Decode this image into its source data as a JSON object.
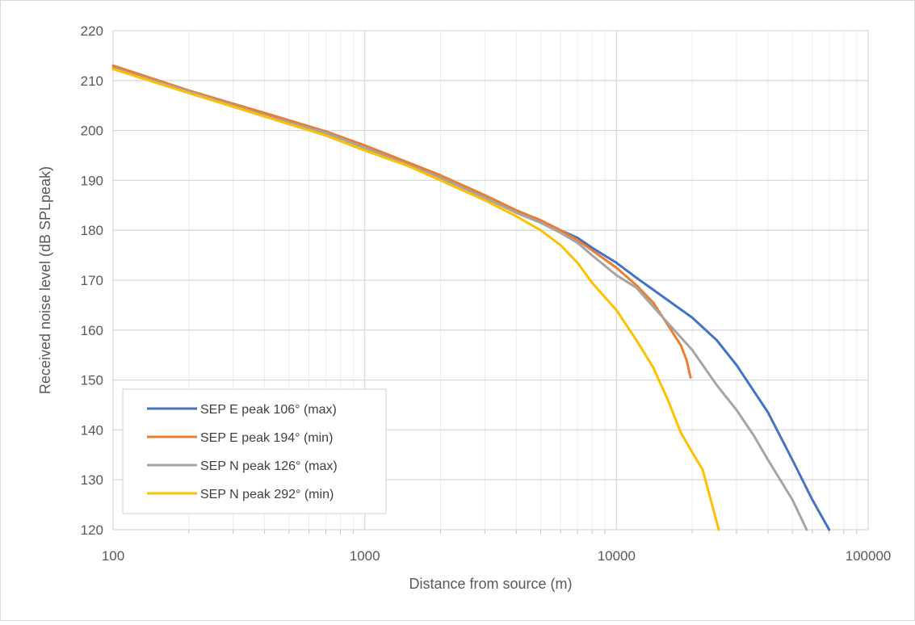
{
  "chart_data": {
    "type": "line",
    "title": "",
    "xlabel": "Distance from source (m)",
    "ylabel": "Received noise level (dB SPLpeak)",
    "xscale": "log",
    "xlim": [
      100,
      100000
    ],
    "ylim": [
      120,
      220
    ],
    "x_ticks": [
      "100",
      "1000",
      "10000",
      "100000"
    ],
    "y_ticks": [
      "120",
      "130",
      "140",
      "150",
      "160",
      "170",
      "180",
      "190",
      "200",
      "210",
      "220"
    ],
    "grid": true,
    "legend_position": "bottom-left",
    "series": [
      {
        "name": "SEP E peak 106° (max)",
        "color": "#4472c4",
        "points": [
          [
            100,
            213.0
          ],
          [
            200,
            208.0
          ],
          [
            400,
            203.5
          ],
          [
            700,
            199.8
          ],
          [
            1000,
            197.0
          ],
          [
            1500,
            193.5
          ],
          [
            2000,
            191.0
          ],
          [
            3000,
            187.0
          ],
          [
            4000,
            184.0
          ],
          [
            5000,
            182.0
          ],
          [
            6000,
            180.0
          ],
          [
            7000,
            178.5
          ],
          [
            8000,
            176.5
          ],
          [
            10000,
            173.5
          ],
          [
            12000,
            170.5
          ],
          [
            15000,
            167.0
          ],
          [
            20000,
            162.5
          ],
          [
            25000,
            158.0
          ],
          [
            30000,
            153.0
          ],
          [
            40000,
            143.5
          ],
          [
            50000,
            134.0
          ],
          [
            60000,
            126.0
          ],
          [
            70000,
            120.0
          ]
        ]
      },
      {
        "name": "SEP E peak 194° (min)",
        "color": "#ed7d31",
        "points": [
          [
            100,
            213.0
          ],
          [
            200,
            208.0
          ],
          [
            400,
            203.5
          ],
          [
            700,
            199.8
          ],
          [
            1000,
            197.0
          ],
          [
            1500,
            193.5
          ],
          [
            2000,
            191.0
          ],
          [
            3000,
            187.0
          ],
          [
            4000,
            184.0
          ],
          [
            5000,
            182.0
          ],
          [
            6000,
            180.0
          ],
          [
            7000,
            178.0
          ],
          [
            8000,
            176.0
          ],
          [
            10000,
            172.5
          ],
          [
            12000,
            169.0
          ],
          [
            14000,
            165.5
          ],
          [
            16000,
            161.0
          ],
          [
            18000,
            157.0
          ],
          [
            19000,
            154.0
          ],
          [
            19700,
            150.5
          ]
        ]
      },
      {
        "name": "SEP N peak 126° (max)",
        "color": "#a5a5a5",
        "points": [
          [
            100,
            212.5
          ],
          [
            200,
            207.8
          ],
          [
            400,
            203.0
          ],
          [
            700,
            199.5
          ],
          [
            1000,
            196.5
          ],
          [
            1500,
            193.0
          ],
          [
            2000,
            190.5
          ],
          [
            3000,
            186.5
          ],
          [
            4000,
            183.5
          ],
          [
            5000,
            181.5
          ],
          [
            6000,
            179.5
          ],
          [
            7000,
            177.5
          ],
          [
            8000,
            175.0
          ],
          [
            10000,
            171.0
          ],
          [
            12000,
            168.5
          ],
          [
            15000,
            163.0
          ],
          [
            20000,
            156.0
          ],
          [
            25000,
            149.0
          ],
          [
            30000,
            144.0
          ],
          [
            35000,
            139.0
          ],
          [
            40000,
            134.0
          ],
          [
            50000,
            126.0
          ],
          [
            57000,
            120.0
          ]
        ]
      },
      {
        "name": "SEP N peak 292° (min)",
        "color": "#ffc000",
        "points": [
          [
            100,
            212.3
          ],
          [
            200,
            207.5
          ],
          [
            400,
            202.8
          ],
          [
            700,
            199.0
          ],
          [
            1000,
            196.0
          ],
          [
            1500,
            192.8
          ],
          [
            2000,
            190.0
          ],
          [
            3000,
            186.0
          ],
          [
            4000,
            182.8
          ],
          [
            5000,
            180.0
          ],
          [
            6000,
            177.0
          ],
          [
            7000,
            173.5
          ],
          [
            8000,
            169.5
          ],
          [
            10000,
            164.0
          ],
          [
            12000,
            158.0
          ],
          [
            14000,
            152.5
          ],
          [
            16000,
            146.0
          ],
          [
            18000,
            139.5
          ],
          [
            20000,
            135.5
          ],
          [
            22000,
            132.0
          ],
          [
            24000,
            125.0
          ],
          [
            25500,
            120.0
          ]
        ]
      }
    ]
  }
}
